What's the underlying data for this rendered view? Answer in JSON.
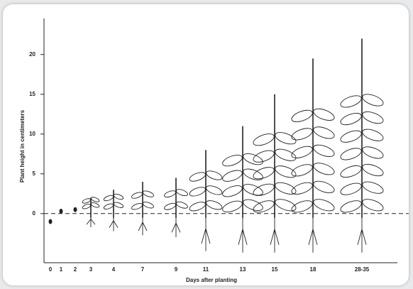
{
  "chart_data": {
    "type": "plant-growth",
    "y_label": "Plant height in centimeters",
    "x_label": "Days after planting",
    "categories": [
      "0",
      "1",
      "2",
      "3",
      "4",
      "7",
      "9",
      "11",
      "13",
      "15",
      "18",
      "28-35"
    ],
    "values": [
      -1,
      0.3,
      0.5,
      2,
      3,
      4,
      4.5,
      8,
      11,
      15,
      19.5,
      22
    ],
    "ylim": [
      -6,
      24.5
    ],
    "yticks": [
      0,
      5,
      10,
      15,
      20
    ],
    "color": "#222222"
  }
}
